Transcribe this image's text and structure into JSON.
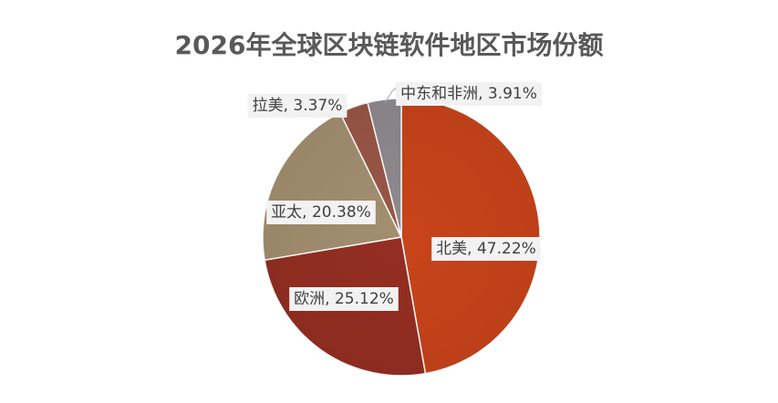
{
  "chart_data": {
    "type": "pie",
    "title": "2026年全球区块链软件地区市场份额",
    "categories": [
      "北美",
      "欧洲",
      "亚太",
      "拉美",
      "中东和非洲"
    ],
    "values": [
      47.22,
      25.12,
      20.38,
      3.37,
      3.91
    ],
    "unit": "%",
    "colors": [
      "#c9441a",
      "#952e22",
      "#a38f70",
      "#9a5646",
      "#8f8a8e"
    ],
    "data_labels": [
      "北美, 47.22%",
      "欧洲, 25.12%",
      "亚太, 20.38%",
      "拉美, 3.37%",
      "中东和非洲, 3.91%"
    ],
    "legend": "none"
  }
}
